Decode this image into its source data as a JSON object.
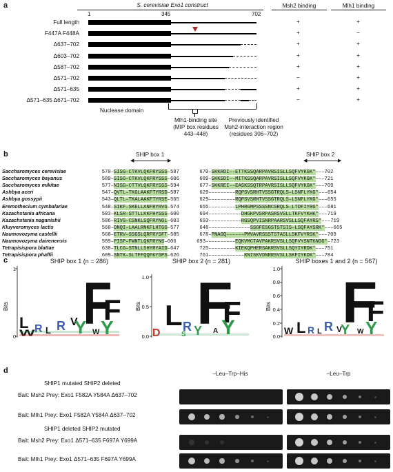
{
  "panel_a": {
    "label": "a",
    "title": "S. cerevisiae Exo1 construct",
    "positions": [
      "1",
      "345",
      "702"
    ],
    "col_msh2": "Msh2 binding",
    "col_mlh1": "Mlh1 binding",
    "constructs": [
      {
        "name": "Full length",
        "msh2": "+",
        "mlh1": "+"
      },
      {
        "name": "F447A F448A",
        "msh2": "+",
        "mlh1": "−"
      },
      {
        "name": "Δ637–702",
        "msh2": "+",
        "mlh1": "+"
      },
      {
        "name": "Δ603–702",
        "msh2": "+",
        "mlh1": "+"
      },
      {
        "name": "Δ587–702",
        "msh2": "+",
        "mlh1": "+"
      },
      {
        "name": "Δ571–702",
        "msh2": "−",
        "mlh1": "+"
      },
      {
        "name": "Δ571–635",
        "msh2": "+",
        "mlh1": "+"
      },
      {
        "name": "Δ571–635 Δ671–702",
        "msh2": "−",
        "mlh1": "+"
      }
    ],
    "nuclease_label": "Nuclease domain",
    "mip_label": [
      "Mlh1-binding site",
      "(MIP box residues",
      "443–448)"
    ],
    "msh2_region_label": [
      "Previously identified",
      "Msh2-interaction region",
      "(residues 306–702)"
    ]
  },
  "panel_b": {
    "label": "b",
    "box1_label": "SHIP box 1",
    "box2_label": "SHIP box 2",
    "rows": [
      {
        "species": "Saccharomyces cerevisiae",
        "s1": "570–",
        "seq1": "SISG–CTKVLQKFRYSSS",
        "e1": "–587",
        "s2": "670–",
        "seq2": "SKKRDI––ETTKSSQARPAVRSISLLSQFVYKGK*",
        "e2": "–––702"
      },
      {
        "species": "Saccharomyces bayanus",
        "s1": "589–",
        "seq1": "SISG–CTKVLQKFRYSSS",
        "e1": "–606",
        "s2": "689–",
        "seq2": "SKKSDI––MITKSSQARPAVRSISLLSQFVYKGK*",
        "e2": "–––721"
      },
      {
        "species": "Saccharomyces mikitae",
        "s1": "577–",
        "seq1": "NISG–CTTVLQKFRYSSS",
        "e1": "–594",
        "s2": "677–",
        "seq2": "SKKREI––EASKSSQTRPAVRSISLLSQFVYKGK*",
        "e2": "–––709"
      },
      {
        "species": "Ashbya aceri",
        "s1": "547–",
        "seq1": "QVTL–TKGLAAKFTYRSD",
        "e1": "–587",
        "s2": "629–",
        "seq2": "––––––––RQPSVSRHTVSSGTRQLS–LSNFLYKG*",
        "e2": "–––654"
      },
      {
        "species": "Ashbya gossypii",
        "s1": "543–",
        "seq1": "QLTL–TKALAAKFTYRSE",
        "e1": "–565",
        "s2": "629–",
        "seq2": "––––––––RQPSVSRHTVSSGTRQLS–LSNFLYKG*",
        "e2": "–––655"
      },
      {
        "species": "Eremothecium cymbalariae",
        "s1": "548–",
        "seq1": "SIKF–SKELLANFRYRVG",
        "e1": "–574",
        "s2": "655–",
        "seq2": "––––––––LPHRGMPSSSSNCSRQLS–LTDFIYRG*",
        "e2": "–––681"
      },
      {
        "species": "Kazachstania africana",
        "s1": "583–",
        "seq1": "KLSR–STTLLKKFHYSSS",
        "e1": "–600",
        "s2": "694–",
        "seq2": "––––––––––DHGKPVSRPASRSVSLLTKFVYKHK*",
        "e2": "–––719"
      },
      {
        "species": "Kazachstania naganishii",
        "s1": "586–",
        "seq1": "RIVG–CSNKLSQFRYNGL",
        "e1": "–603",
        "s2": "693–",
        "seq2": "––––––––––RGSQPVISNRPAARSVSLLSQFAYRS*",
        "e2": "–––719"
      },
      {
        "species": "Kluyveromyces lactis",
        "s1": "560–",
        "seq1": "DNQI–LAALRNKFLHTGG",
        "e1": "–577",
        "s2": "648–",
        "seq2": "–––––––––––––SSGFESGSTSTSIS–LSQFAYSRK*",
        "e2": "–––665"
      },
      {
        "species": "Naumovozyma castellii",
        "s1": "568–",
        "seq1": "ETRV–SSGSLQRFRYSFT",
        "e1": "–585",
        "s2": "678–",
        "seq2": "PNAGQ––––––PMVAVRSSSTSTASLLSKFVYRSK*",
        "e2": "–––709"
      },
      {
        "species": "Naumovozyma dairenensis",
        "s1": "589–",
        "seq1": "PISP–FWNTLQKFRYNS",
        "e1": "–606",
        "s2": "693–",
        "seq2": "–––––––––EQKVMCTAVPAKRSVSLLSQFVYSNTKNGG*",
        "e2": "–723"
      },
      {
        "species": "Tetrapisispora blattae",
        "s1": "630–",
        "seq1": "TLCG–STNLLSHYRYAID",
        "e1": "–647",
        "s2": "725–",
        "seq2": "––––––––KIEKQPHERSAKRSVSLLSQYIYRDK*",
        "e2": "–––751"
      },
      {
        "species": "Tetrapisispora phaffii",
        "s1": "609–",
        "seq1": "SNTK–SLTFFQQFKYSPS",
        "e1": "–626",
        "s2": "761–",
        "seq2": "–––––––––––KNISKVDNRRSVSLLSKFIYKDK*",
        "e2": "–––784"
      }
    ]
  },
  "panel_c": {
    "label": "c",
    "ylabel": "Bits",
    "logos": [
      {
        "title": "SHIP box 1 (n = 286)",
        "ticks": [
          "1",
          "0"
        ]
      },
      {
        "title": "SHIP box 2 (n = 281)",
        "ticks": [
          "1.0",
          "0.5",
          "0.0"
        ]
      },
      {
        "title": "SHIP boxes 1 and 2 (n = 567)",
        "ticks": [
          "1.0",
          "0.8",
          "0.6",
          "0.4",
          "0.2",
          "0.0"
        ]
      }
    ]
  },
  "panel_d": {
    "label": "d",
    "col1": "–Leu–Trp–His",
    "col2": "–Leu–Trp",
    "group1": "SHIP1 mutated SHIP2 deleted",
    "group2": "SHIP1 deleted SHIP2 mutated",
    "rows": [
      {
        "text": "Bait: Msh2   Prey: Exo1 F582A Y584A Δ637–702",
        "growth1": 0.0,
        "growth2": 1.0
      },
      {
        "text": "Bait: Mlh1   Prey: Exo1 F582A Y584A Δ637–702",
        "growth1": 0.9,
        "growth2": 1.0
      },
      {
        "text": "Bait: Msh2   Prey: Exo1 Δ571–635 F697A Y699A",
        "growth1": 0.05,
        "growth2": 1.0
      },
      {
        "text": "Bait: Mlh1   Prey: Exo1 Δ571–635 F697A Y699A",
        "growth1": 0.9,
        "growth2": 1.0
      }
    ]
  },
  "colors": {
    "highlight": "#b9dfa0",
    "marker": "#a03030",
    "logo_green": "#2e9a4a",
    "logo_blue": "#3a5cb0",
    "logo_red": "#c8322c"
  }
}
